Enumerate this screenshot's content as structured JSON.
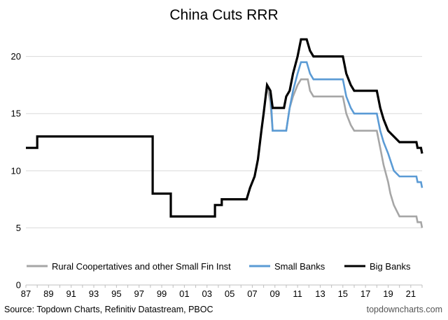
{
  "chart_data": {
    "type": "line",
    "title": "China Cuts RRR",
    "xlabel": "",
    "ylabel": "",
    "xlim": [
      1987,
      2022
    ],
    "ylim": [
      0,
      22
    ],
    "y_ticks": [
      0,
      5,
      10,
      15,
      20
    ],
    "y_tick_labels": [
      "0",
      "5",
      "10",
      "15",
      "20"
    ],
    "x_ticks": [
      1987,
      1989,
      1991,
      1993,
      1995,
      1997,
      1999,
      2001,
      2003,
      2005,
      2007,
      2009,
      2011,
      2013,
      2015,
      2017,
      2019,
      2021
    ],
    "x_tick_labels": [
      "87",
      "89",
      "91",
      "93",
      "95",
      "97",
      "99",
      "01",
      "03",
      "05",
      "07",
      "09",
      "11",
      "13",
      "15",
      "17",
      "19",
      "21"
    ],
    "gridlines": "horizontal",
    "legend_position": "bottom-inside",
    "series": [
      {
        "name": "Rural Coopertatives and other Small Fin Inst",
        "color": "#a6a6a6",
        "points": [
          [
            1987,
            12
          ],
          [
            1988,
            12
          ],
          [
            1988,
            13
          ],
          [
            1998.2,
            13
          ],
          [
            1998.2,
            8
          ],
          [
            1999.8,
            8
          ],
          [
            1999.8,
            6
          ],
          [
            2003.7,
            6
          ],
          [
            2003.7,
            7
          ],
          [
            2004.3,
            7
          ],
          [
            2004.3,
            7.5
          ],
          [
            2006.5,
            7.5
          ],
          [
            2006.8,
            8.5
          ],
          [
            2007.2,
            9.5
          ],
          [
            2007.5,
            11
          ],
          [
            2007.8,
            13.5
          ],
          [
            2008.3,
            17.5
          ],
          [
            2008.6,
            16
          ],
          [
            2008.8,
            13.5
          ],
          [
            2010.0,
            13.5
          ],
          [
            2010.3,
            15.5
          ],
          [
            2010.6,
            16.5
          ],
          [
            2011.0,
            17.5
          ],
          [
            2011.3,
            18
          ],
          [
            2011.9,
            18
          ],
          [
            2012.1,
            17
          ],
          [
            2012.4,
            16.5
          ],
          [
            2015.0,
            16.5
          ],
          [
            2015.3,
            15
          ],
          [
            2015.7,
            14
          ],
          [
            2016.0,
            13.5
          ],
          [
            2018.0,
            13.5
          ],
          [
            2018.3,
            12
          ],
          [
            2018.6,
            10.5
          ],
          [
            2019.0,
            9
          ],
          [
            2019.2,
            8
          ],
          [
            2019.5,
            7
          ],
          [
            2020.0,
            6
          ],
          [
            2021.5,
            6
          ],
          [
            2021.6,
            5.5
          ],
          [
            2021.9,
            5.5
          ],
          [
            2022.0,
            5
          ]
        ]
      },
      {
        "name": "Small Banks",
        "color": "#5b9bd5",
        "points": [
          [
            2008.6,
            17
          ],
          [
            2008.8,
            13.5
          ],
          [
            2010.0,
            13.5
          ],
          [
            2010.3,
            15.5
          ],
          [
            2010.6,
            17
          ],
          [
            2011.0,
            18.5
          ],
          [
            2011.3,
            19.5
          ],
          [
            2011.8,
            19.5
          ],
          [
            2012.1,
            18.5
          ],
          [
            2012.4,
            18
          ],
          [
            2015.0,
            18
          ],
          [
            2015.3,
            16.5
          ],
          [
            2015.7,
            15.5
          ],
          [
            2016.0,
            15
          ],
          [
            2018.0,
            15
          ],
          [
            2018.3,
            13.5
          ],
          [
            2018.6,
            12.5
          ],
          [
            2019.0,
            11.5
          ],
          [
            2019.5,
            10
          ],
          [
            2020.0,
            9.5
          ],
          [
            2021.5,
            9.5
          ],
          [
            2021.6,
            9
          ],
          [
            2021.9,
            9
          ],
          [
            2022.0,
            8.5
          ]
        ]
      },
      {
        "name": "Big Banks",
        "color": "#000000",
        "points": [
          [
            1987,
            12
          ],
          [
            1988,
            12
          ],
          [
            1988,
            13
          ],
          [
            1998.2,
            13
          ],
          [
            1998.2,
            8
          ],
          [
            1999.8,
            8
          ],
          [
            1999.8,
            6
          ],
          [
            2003.7,
            6
          ],
          [
            2003.7,
            7
          ],
          [
            2004.3,
            7
          ],
          [
            2004.3,
            7.5
          ],
          [
            2006.5,
            7.5
          ],
          [
            2006.8,
            8.5
          ],
          [
            2007.2,
            9.5
          ],
          [
            2007.5,
            11
          ],
          [
            2007.8,
            13.5
          ],
          [
            2008.0,
            15
          ],
          [
            2008.3,
            17.5
          ],
          [
            2008.6,
            17
          ],
          [
            2008.8,
            15.5
          ],
          [
            2009.8,
            15.5
          ],
          [
            2010.0,
            16.5
          ],
          [
            2010.3,
            17
          ],
          [
            2010.6,
            18.5
          ],
          [
            2011.0,
            20
          ],
          [
            2011.3,
            21.5
          ],
          [
            2011.8,
            21.5
          ],
          [
            2012.1,
            20.5
          ],
          [
            2012.4,
            20
          ],
          [
            2015.0,
            20
          ],
          [
            2015.3,
            18.5
          ],
          [
            2015.7,
            17.5
          ],
          [
            2016.0,
            17
          ],
          [
            2018.0,
            17
          ],
          [
            2018.3,
            15.5
          ],
          [
            2018.6,
            14.5
          ],
          [
            2019.0,
            13.5
          ],
          [
            2019.5,
            13
          ],
          [
            2020.0,
            12.5
          ],
          [
            2021.5,
            12.5
          ],
          [
            2021.6,
            12
          ],
          [
            2021.9,
            12
          ],
          [
            2022.0,
            11.5
          ]
        ]
      }
    ],
    "source": "Source: Topdown Charts, Refinitiv Datastream, PBOC",
    "credit": "topdowncharts.com"
  }
}
